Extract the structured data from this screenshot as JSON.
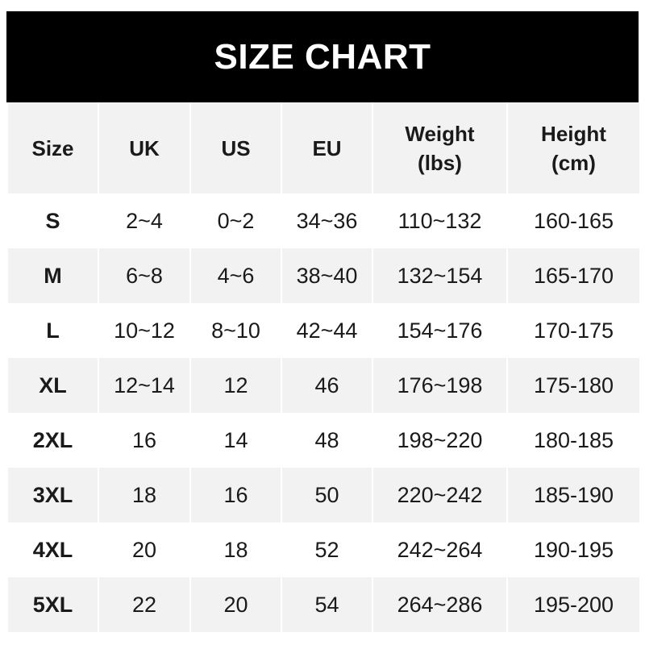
{
  "title": "SIZE CHART",
  "headers": [
    {
      "line1": "Size",
      "line2": ""
    },
    {
      "line1": "UK",
      "line2": ""
    },
    {
      "line1": "US",
      "line2": ""
    },
    {
      "line1": "EU",
      "line2": ""
    },
    {
      "line1": "Weight",
      "line2": "(lbs)"
    },
    {
      "line1": "Height",
      "line2": "(cm)"
    }
  ],
  "rows": [
    [
      "S",
      "2~4",
      "0~2",
      "34~36",
      "110~132",
      "160-165"
    ],
    [
      "M",
      "6~8",
      "4~6",
      "38~40",
      "132~154",
      "165-170"
    ],
    [
      "L",
      "10~12",
      "8~10",
      "42~44",
      "154~176",
      "170-175"
    ],
    [
      "XL",
      "12~14",
      "12",
      "46",
      "176~198",
      "175-180"
    ],
    [
      "2XL",
      "16",
      "14",
      "48",
      "198~220",
      "180-185"
    ],
    [
      "3XL",
      "18",
      "16",
      "50",
      "220~242",
      "185-190"
    ],
    [
      "4XL",
      "20",
      "18",
      "52",
      "242~264",
      "190-195"
    ],
    [
      "5XL",
      "22",
      "20",
      "54",
      "264~286",
      "195-200"
    ]
  ],
  "colors": {
    "title_bg": "#000000",
    "header_bg": "#f2f2f2",
    "stripe": "#f2f2f2"
  }
}
